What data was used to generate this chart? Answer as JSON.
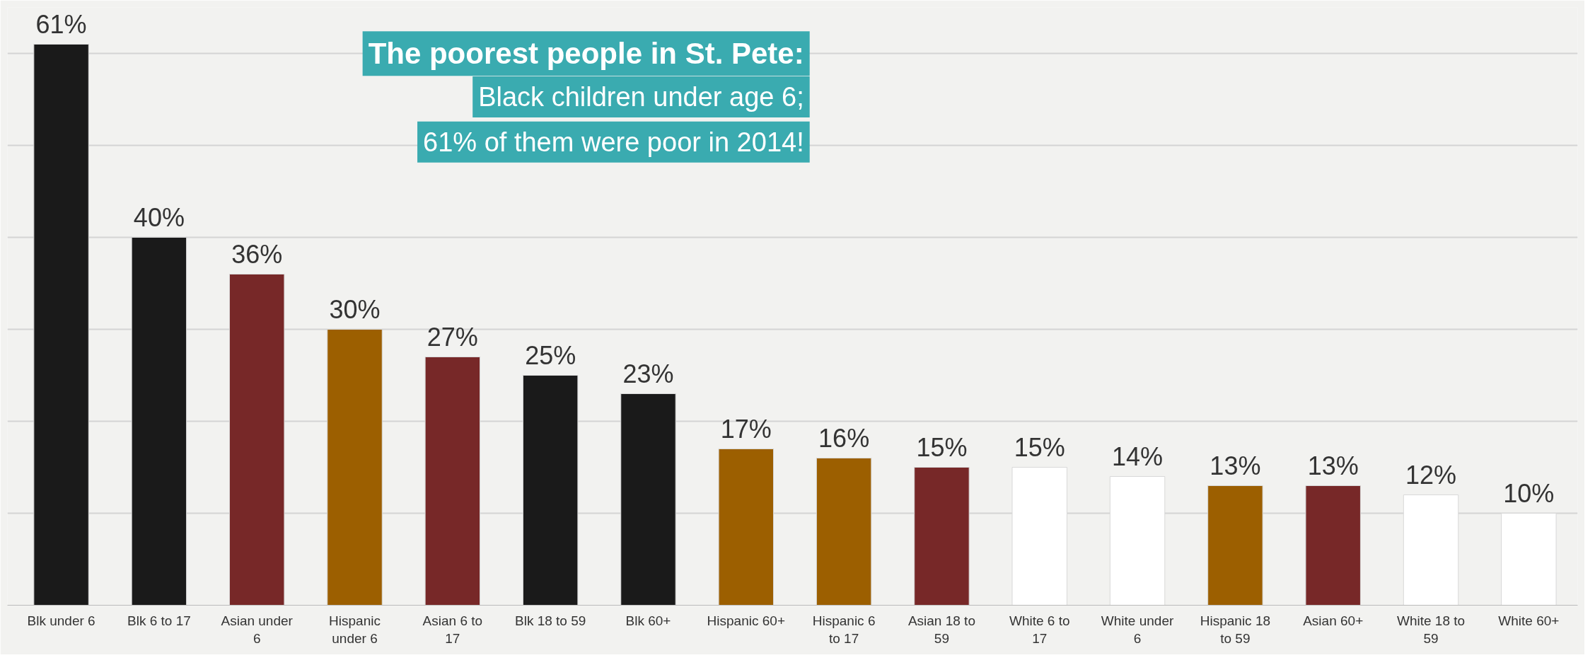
{
  "chart_data": {
    "type": "bar",
    "categories": [
      "Blk under 6",
      "Blk 6 to 17",
      "Asian under 6",
      "Hispanic under 6",
      "Asian 6 to 17",
      "Blk 18 to 59",
      "Blk 60+",
      "Hispanic 60+",
      "Hispanic 6 to 17",
      "Asian 18 to 59",
      "White 6 to 17",
      "White under 6",
      "Hispanic 18 to 59",
      "Asian 60+",
      "White 18 to 59",
      "White 60+"
    ],
    "values": [
      61,
      40,
      36,
      30,
      27,
      25,
      23,
      17,
      16,
      15,
      15,
      14,
      13,
      13,
      12,
      10
    ],
    "colors": [
      "#1a1a1a",
      "#1a1a1a",
      "#772828",
      "#9c5f00",
      "#772828",
      "#1a1a1a",
      "#1a1a1a",
      "#9c5f00",
      "#9c5f00",
      "#772828",
      "#ffffff",
      "#ffffff",
      "#9c5f00",
      "#772828",
      "#ffffff",
      "#ffffff"
    ],
    "value_labels": [
      "61%",
      "40%",
      "36%",
      "30%",
      "27%",
      "25%",
      "23%",
      "17%",
      "16%",
      "15%",
      "15%",
      "14%",
      "13%",
      "13%",
      "12%",
      "10%"
    ],
    "ylim": [
      0,
      65
    ],
    "yticks": [
      {
        "value": 0,
        "label": null
      },
      {
        "value": 10,
        "label": null
      },
      {
        "value": 20,
        "label": null
      },
      {
        "value": 30,
        "label": null
      },
      {
        "value": 40,
        "label": null
      },
      {
        "value": 50,
        "label": null
      },
      {
        "value": 60,
        "label": null
      }
    ],
    "grid": "y",
    "tick_labels": "x",
    "annotations": [
      "The poorest people in St. Pete:",
      "Black children under age 6;",
      "61% of them were poor in 2014!"
    ]
  }
}
